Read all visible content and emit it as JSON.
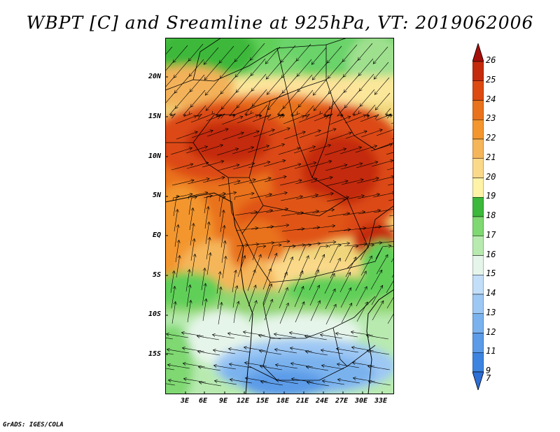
{
  "title": "WBPT [C] and Sreamline at 925hPa, VT: 2019062006",
  "lat_labels": [
    "20N",
    "15N",
    "10N",
    "5N",
    "EQ",
    "5S",
    "10S",
    "15S"
  ],
  "lon_labels": [
    "3E",
    "6E",
    "9E",
    "12E",
    "15E",
    "18E",
    "21E",
    "24E",
    "27E",
    "30E",
    "33E"
  ],
  "colorbar": {
    "levels": [
      "7",
      "9",
      "11",
      "12",
      "13",
      "14",
      "15",
      "16",
      "17",
      "18",
      "19",
      "20",
      "21",
      "22",
      "23",
      "24",
      "25",
      "26"
    ],
    "colors": [
      "#2e6fd6",
      "#3d84e0",
      "#5b9be8",
      "#7ab2ee",
      "#9ec8f4",
      "#c3def8",
      "#e6f5ea",
      "#b8eab0",
      "#7fd872",
      "#3cb83a",
      "#fff3a8",
      "#fbd98a",
      "#f5b65a",
      "#f3962e",
      "#e9721c",
      "#dc4a12",
      "#c42a0c",
      "#a50f0a"
    ],
    "arrow_low_color": "#2e6fd6",
    "arrow_high_color": "#a50f0a"
  },
  "credit": "GrADS: IGES/COLA"
}
